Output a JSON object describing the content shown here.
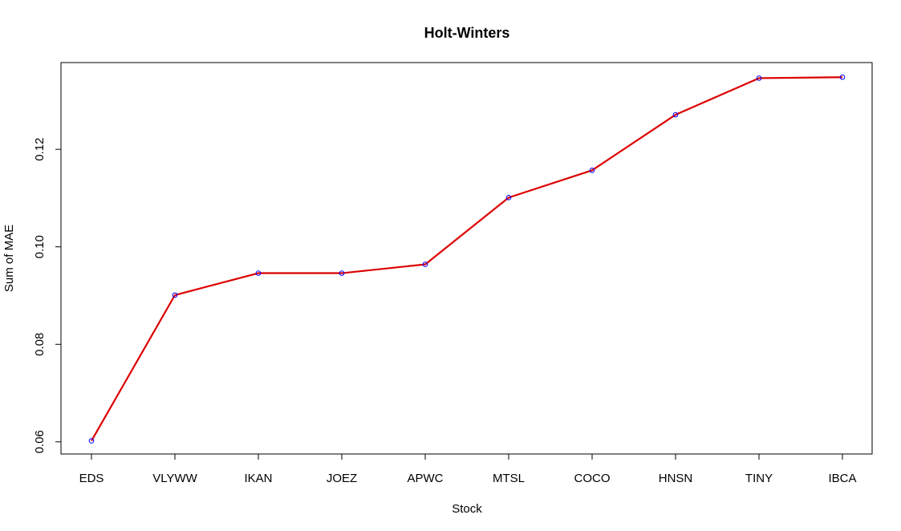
{
  "chart_data": {
    "type": "line",
    "title": "Holt-Winters",
    "xlabel": "Stock",
    "ylabel": "Sum of MAE",
    "categories": [
      "EDS",
      "VLYWW",
      "IKAN",
      "JOEZ",
      "APWC",
      "MTSL",
      "COCO",
      "HNSN",
      "TINY",
      "IBCA"
    ],
    "values": [
      0.0602,
      0.0901,
      0.0946,
      0.0946,
      0.0964,
      0.1101,
      0.1157,
      0.1271,
      0.1346,
      0.1348
    ],
    "ylim": [
      0.0575,
      0.1378
    ],
    "yticks": [
      0.06,
      0.08,
      0.1,
      0.12
    ],
    "ytick_labels": [
      "0.06",
      "0.08",
      "0.10",
      "0.12"
    ],
    "grid": false,
    "line_color": "#dd0000",
    "marker_color": "#0000ff"
  }
}
